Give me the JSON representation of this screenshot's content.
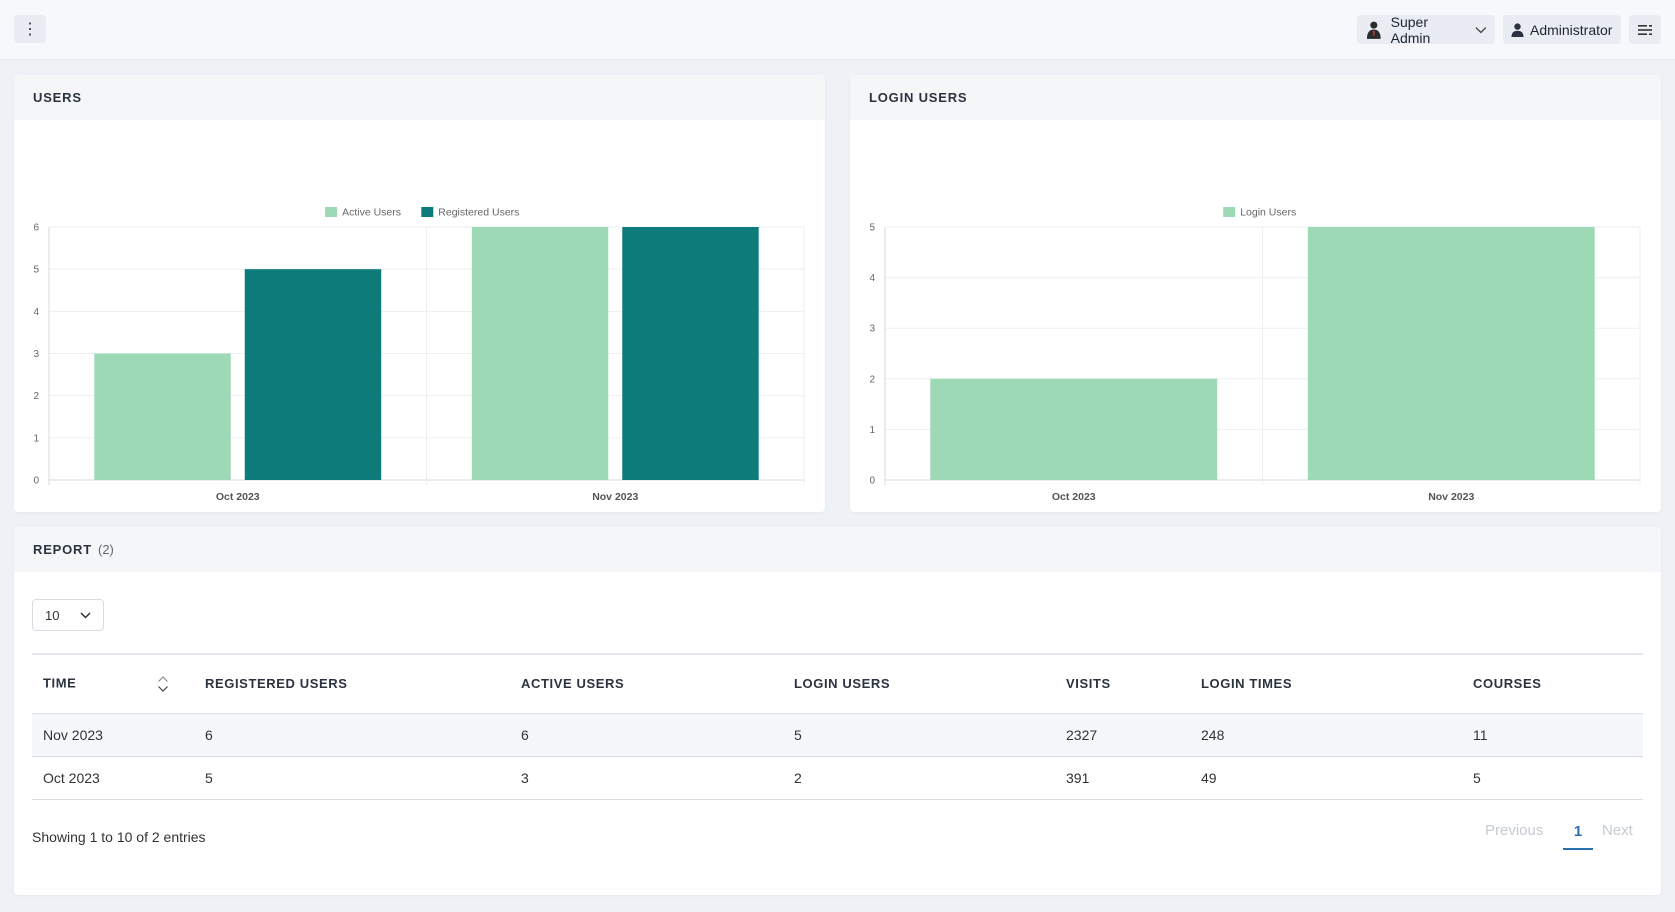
{
  "topbar": {
    "superadmin_label": "Super Admin",
    "admin_label": "Administrator"
  },
  "users_card": {
    "title": "USERS",
    "chart_data": {
      "type": "bar",
      "categories": [
        "Oct 2023",
        "Nov 2023"
      ],
      "series": [
        {
          "name": "Active Users",
          "values": [
            3,
            6
          ],
          "color": "#9ed9b6"
        },
        {
          "name": "Registered Users",
          "values": [
            5,
            6
          ],
          "color": "#0d7b79"
        }
      ],
      "ylim": [
        0,
        6
      ],
      "yticks": [
        "0",
        "1",
        "2",
        "3",
        "4",
        "5",
        "6"
      ],
      "legend": "top-center",
      "grid": true
    }
  },
  "login_card": {
    "title": "LOGIN USERS",
    "chart_data": {
      "type": "bar",
      "categories": [
        "Oct 2023",
        "Nov 2023"
      ],
      "series": [
        {
          "name": "Login Users",
          "values": [
            2,
            5
          ],
          "color": "#9ed9b6"
        }
      ],
      "ylim": [
        0,
        5
      ],
      "yticks": [
        "0",
        "1",
        "2",
        "3",
        "4",
        "5"
      ],
      "legend": "top-center",
      "grid": true
    }
  },
  "report": {
    "title": "REPORT",
    "count": "(2)",
    "page_length": "10",
    "columns": [
      "TIME",
      "REGISTERED USERS",
      "ACTIVE USERS",
      "LOGIN USERS",
      "VISITS",
      "LOGIN TIMES",
      "COURSES"
    ],
    "rows": [
      [
        "Nov 2023",
        "6",
        "6",
        "5",
        "2327",
        "248",
        "11"
      ],
      [
        "Oct 2023",
        "5",
        "3",
        "2",
        "391",
        "49",
        "5"
      ]
    ],
    "info": "Showing 1 to 10 of 2 entries",
    "prev_label": "Previous",
    "current_page": "1",
    "next_label": "Next"
  }
}
